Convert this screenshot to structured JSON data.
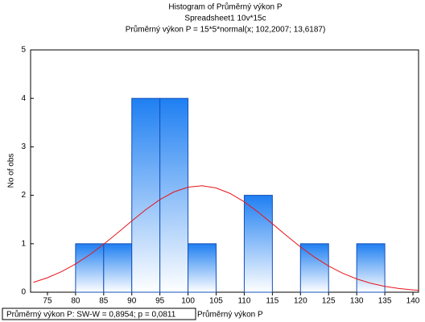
{
  "chart_data": {
    "type": "histogram",
    "title": "Histogram of Průměrný výkon P",
    "subtitle": "Spreadsheet1 10v*15c",
    "annotation": "Průměrný výkon P = 15*5*normal(x; 102,2007; 13,6187)",
    "x_label": "Průměrný výkon P",
    "y_label": "No of obs",
    "legend_text": "Průměrný výkon P:  SW-W = 0,8954; p = 0,0811",
    "bins": [
      80,
      85,
      90,
      95,
      100,
      105,
      110,
      115,
      120,
      125,
      130,
      135
    ],
    "values": [
      1,
      1,
      4,
      4,
      1,
      0,
      2,
      0,
      1,
      0,
      1
    ],
    "color": "#1e7ff2",
    "edge_color": "#1450b8",
    "curve": {
      "color": "#e8141b",
      "x": [
        72.5,
        75,
        77.5,
        80,
        82.5,
        85,
        87.5,
        90,
        92.5,
        95,
        97.5,
        100,
        102.5,
        105,
        107.5,
        110,
        112.5,
        115,
        117.5,
        120,
        122.5,
        125,
        127.5,
        130,
        132.5,
        135,
        137.5,
        140,
        142.5
      ],
      "values": [
        0.204,
        0.299,
        0.424,
        0.582,
        0.772,
        0.99,
        1.227,
        1.471,
        1.705,
        1.911,
        2.07,
        2.168,
        2.197,
        2.151,
        2.037,
        1.865,
        1.65,
        1.413,
        1.169,
        0.935,
        0.723,
        0.541,
        0.391,
        0.274,
        0.185,
        0.121,
        0.076,
        0.047,
        0.028
      ]
    },
    "xlim": [
      72,
      141
    ],
    "ylim": [
      0,
      5
    ],
    "xticks": [
      75,
      80,
      85,
      90,
      95,
      100,
      105,
      110,
      115,
      120,
      125,
      130,
      135,
      140
    ],
    "yticks": [
      0,
      1,
      2,
      3,
      4,
      5
    ]
  }
}
